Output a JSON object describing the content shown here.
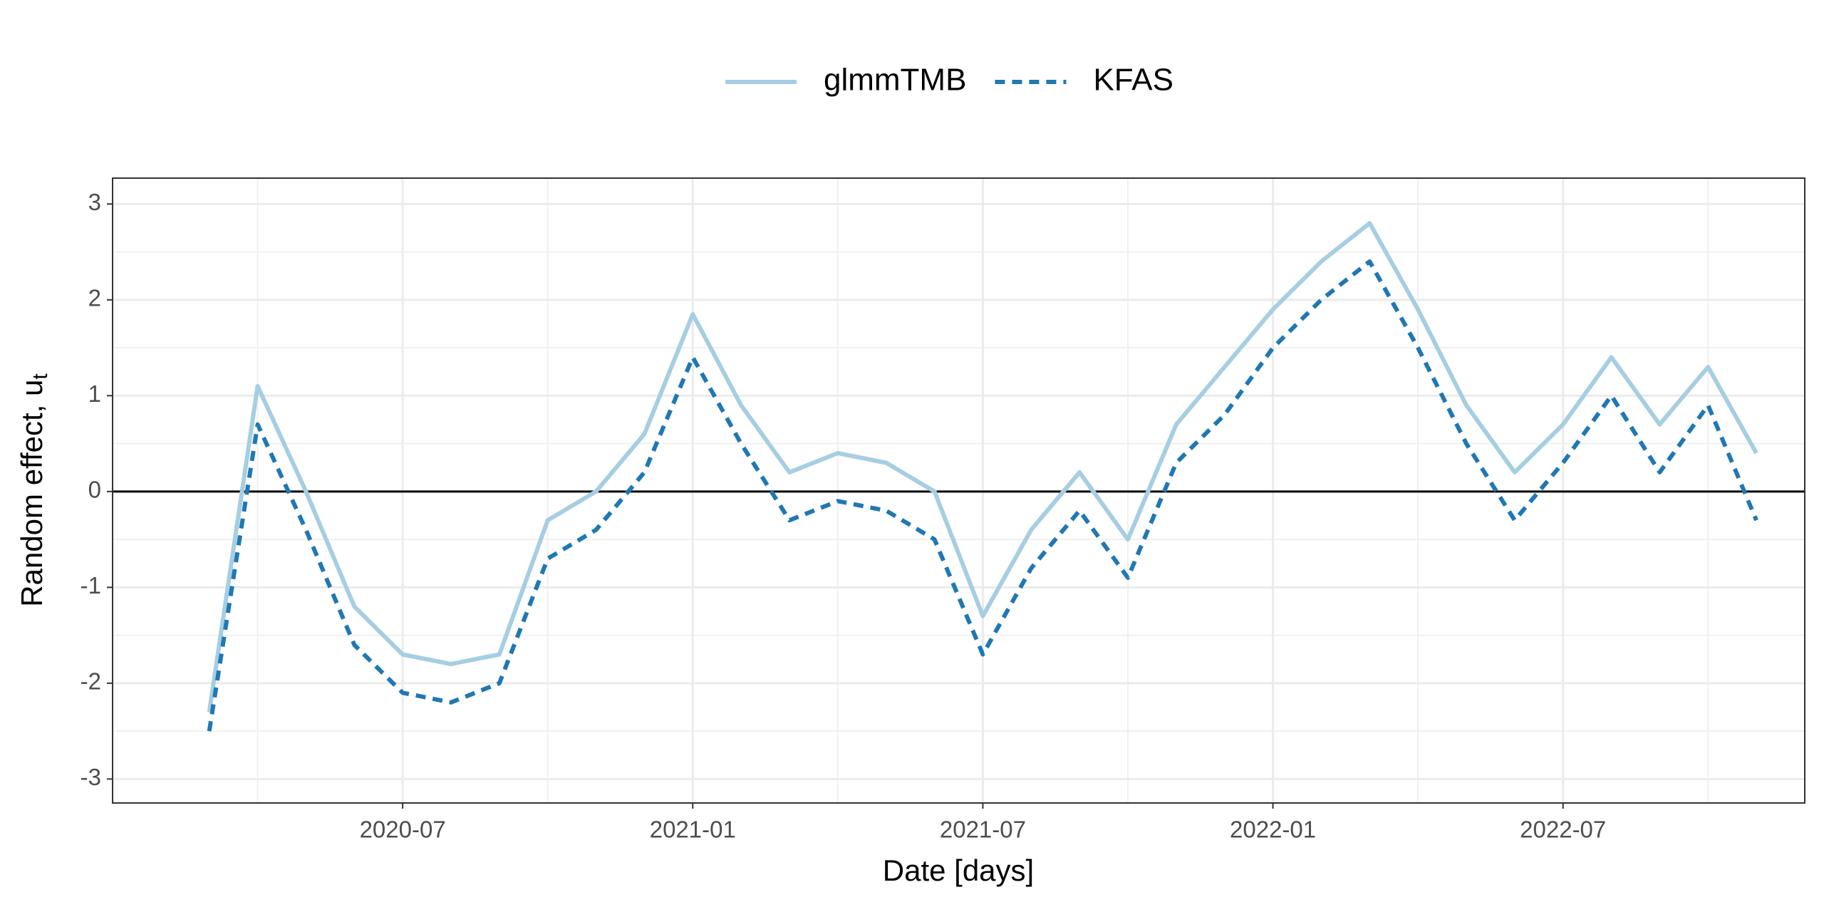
{
  "chart_data": {
    "type": "line",
    "x_label": "Date [days]",
    "y_label": "Random effect, u",
    "y_label_subscript": "t",
    "x": [
      "2020-03",
      "2020-04",
      "2020-05",
      "2020-06",
      "2020-07",
      "2020-08",
      "2020-09",
      "2020-10",
      "2020-11",
      "2020-12",
      "2021-01",
      "2021-02",
      "2021-03",
      "2021-04",
      "2021-05",
      "2021-06",
      "2021-07",
      "2021-08",
      "2021-09",
      "2021-10",
      "2021-11",
      "2021-12",
      "2022-01",
      "2022-02",
      "2022-03",
      "2022-04",
      "2022-05",
      "2022-06",
      "2022-07",
      "2022-08",
      "2022-09",
      "2022-10",
      "2022-11"
    ],
    "series": [
      {
        "name": "glmmTMB",
        "color": "#a6cee3",
        "dash": false,
        "values": [
          -2.3,
          1.1,
          0.0,
          -1.2,
          -1.7,
          -1.8,
          -1.7,
          -0.3,
          0.0,
          0.6,
          1.85,
          0.9,
          0.2,
          0.4,
          0.3,
          0.0,
          -1.3,
          -0.4,
          0.2,
          -0.5,
          0.7,
          1.3,
          1.9,
          2.4,
          2.8,
          1.9,
          0.9,
          0.2,
          0.7,
          1.4,
          0.7,
          1.3,
          0.4
        ]
      },
      {
        "name": "KFAS",
        "color": "#1f78b4",
        "dash": true,
        "values": [
          -2.5,
          0.7,
          -0.4,
          -1.6,
          -2.1,
          -2.2,
          -2.0,
          -0.7,
          -0.4,
          0.2,
          1.4,
          0.5,
          -0.3,
          -0.1,
          -0.2,
          -0.5,
          -1.7,
          -0.8,
          -0.2,
          -0.9,
          0.3,
          0.8,
          1.5,
          2.0,
          2.4,
          1.5,
          0.5,
          -0.3,
          0.3,
          1.0,
          0.2,
          0.9,
          -0.3
        ]
      }
    ],
    "xlim": [
      "2020-01",
      "2022-12"
    ],
    "xticks": [
      "2020-07",
      "2021-01",
      "2021-07",
      "2022-01",
      "2022-07"
    ],
    "ylim": [
      -3.25,
      3.27
    ],
    "yticks": [
      -3,
      -2,
      -1,
      0,
      1,
      2,
      3
    ],
    "hline": 0,
    "grid": true,
    "legend": "top"
  }
}
